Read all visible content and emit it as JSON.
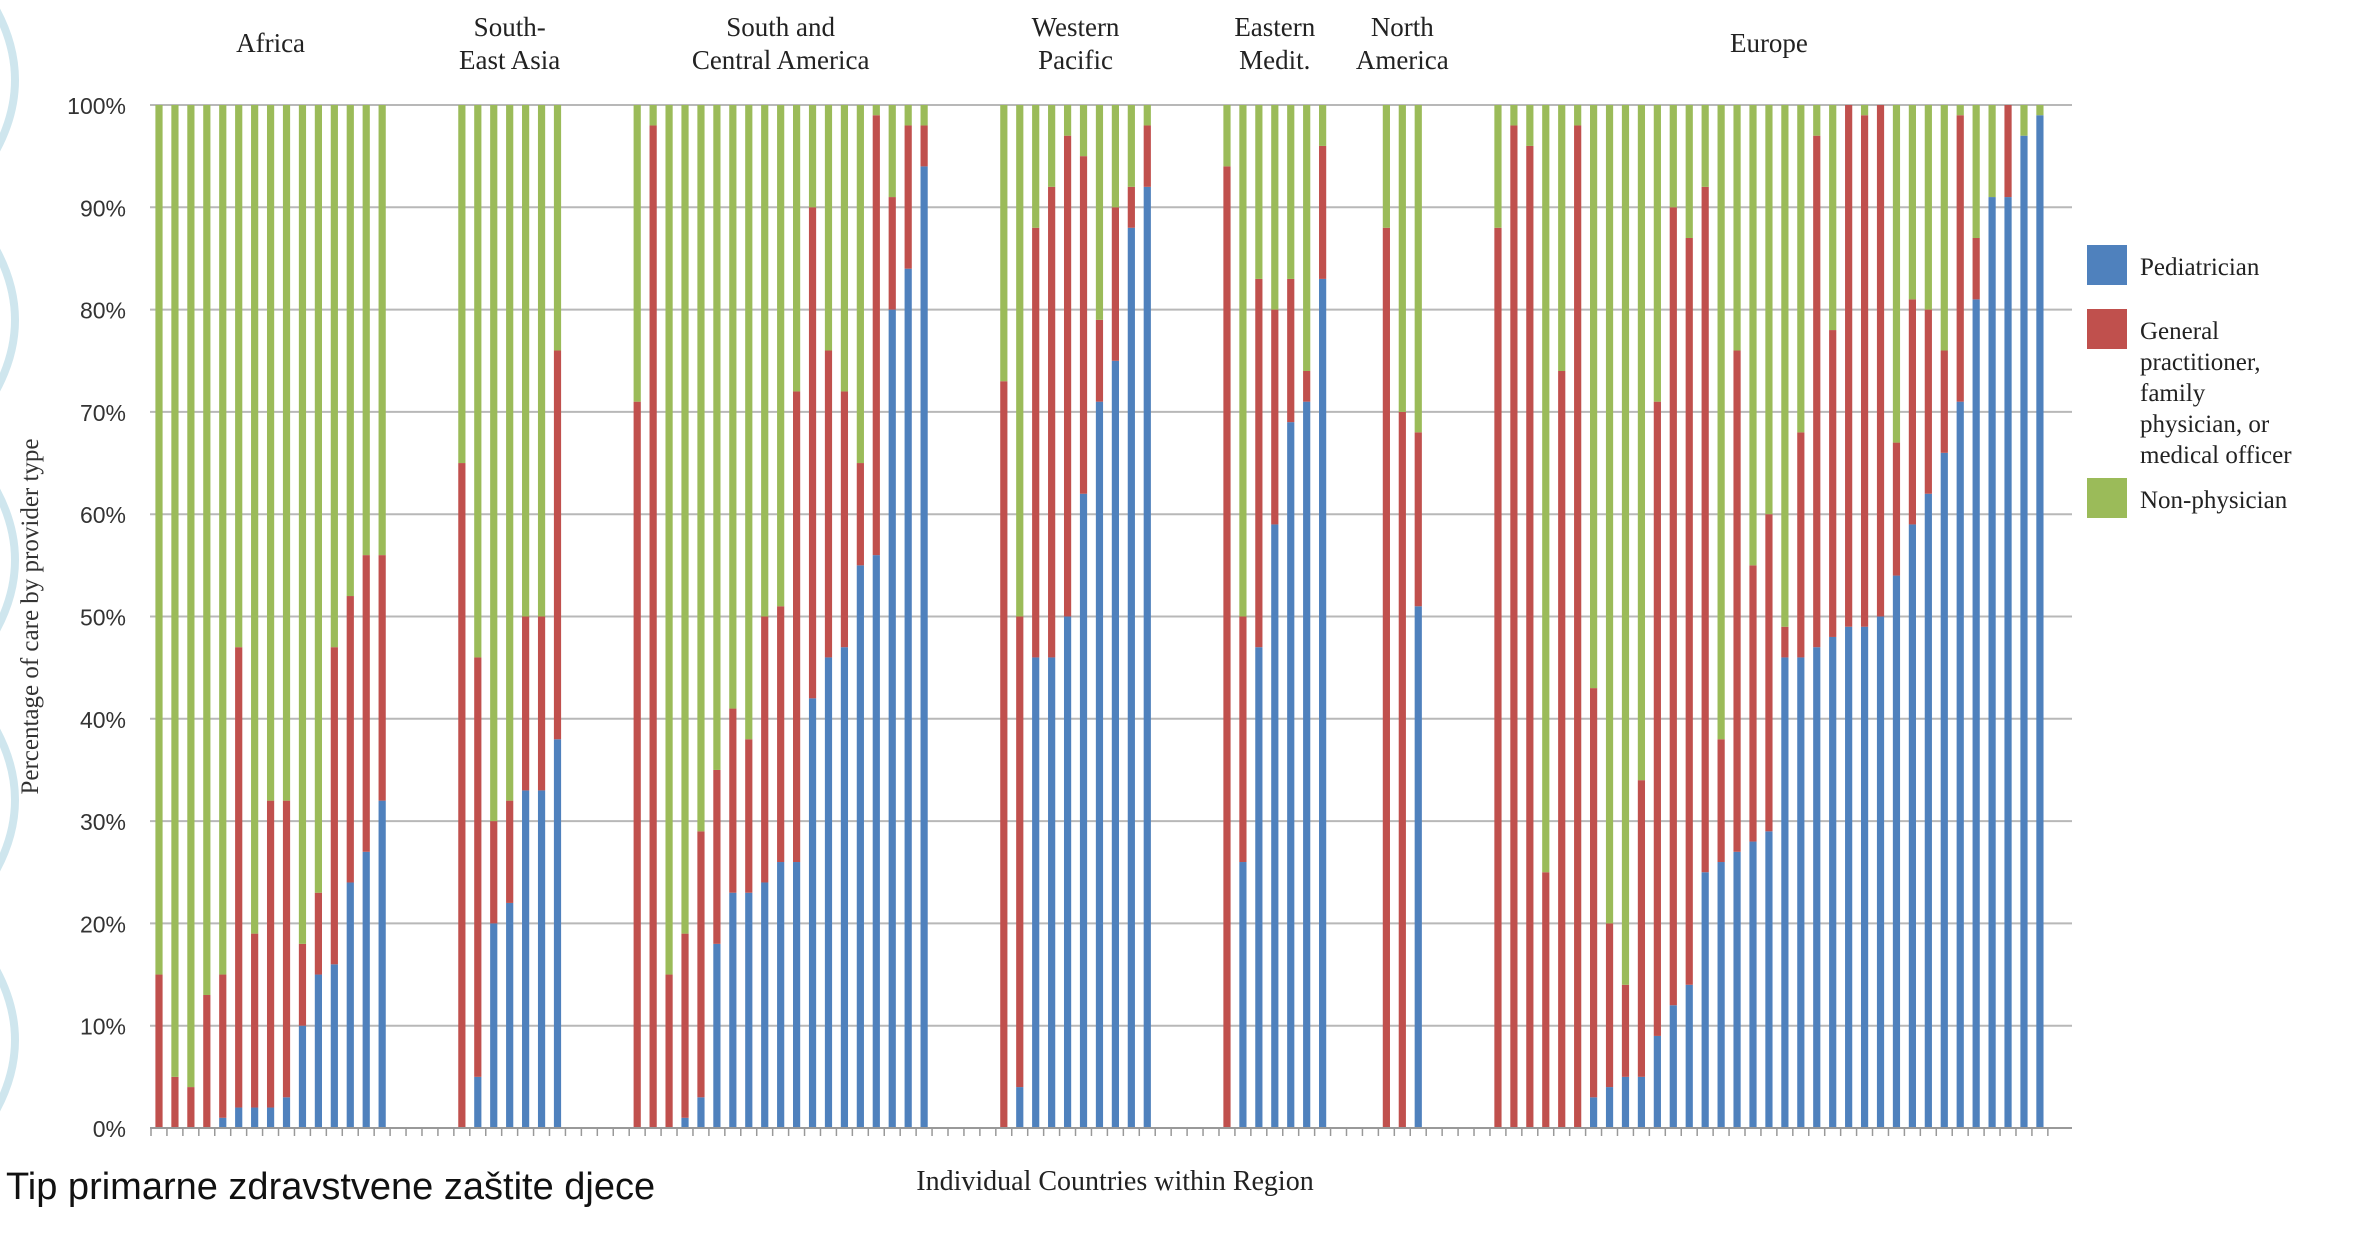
{
  "slide": {
    "caption": "Tip primarne zdravstvene zaštite djece"
  },
  "chart_data": {
    "type": "bar",
    "stacked": true,
    "normalized_to": 100,
    "xlabel": "Individual Countries within Region",
    "ylabel": "Percentage of care by provider type",
    "ylim": [
      0,
      100
    ],
    "y_ticks": [
      "0%",
      "10%",
      "20%",
      "30%",
      "40%",
      "50%",
      "60%",
      "70%",
      "80%",
      "90%",
      "100%"
    ],
    "grid": true,
    "legend_position": "right",
    "colors": {
      "Pediatrician": "#4f81bd",
      "General practitioner, family physician, or medical officer": "#c0504d",
      "Non-physician": "#9bbb59"
    },
    "legend": [
      {
        "series": "Pediatrician",
        "lines": [
          "Pediatrician"
        ]
      },
      {
        "series": "General practitioner, family physician, or medical officer",
        "lines": [
          "General",
          "practitioner,",
          "family",
          "physician, or",
          "medical officer"
        ]
      },
      {
        "series": "Non-physician",
        "lines": [
          "Non-physician"
        ]
      }
    ],
    "regions": [
      {
        "label_lines": [
          "Africa"
        ],
        "pediatrician": [
          0,
          0,
          0,
          0,
          1,
          2,
          2,
          2,
          3,
          10,
          15,
          16,
          24,
          27,
          32
        ],
        "gp_cumulative": [
          15,
          5,
          4,
          13,
          15,
          47,
          19,
          32,
          32,
          18,
          23,
          47,
          52,
          56,
          56
        ]
      },
      {
        "label_lines": [
          "South-",
          "East Asia"
        ],
        "pediatrician": [
          0,
          5,
          20,
          22,
          33,
          33,
          38
        ],
        "gp_cumulative": [
          65,
          46,
          30,
          32,
          50,
          50,
          76
        ]
      },
      {
        "label_lines": [
          "South and",
          "Central America"
        ],
        "pediatrician": [
          0,
          0,
          0,
          1,
          3,
          18,
          23,
          23,
          24,
          26,
          26,
          42,
          46,
          47,
          55,
          56,
          80,
          84,
          94
        ],
        "gp_cumulative": [
          71,
          98,
          15,
          19,
          29,
          35,
          41,
          38,
          50,
          51,
          72,
          90,
          76,
          72,
          65,
          99,
          91,
          98,
          98
        ]
      },
      {
        "label_lines": [
          "Western",
          "Pacific"
        ],
        "pediatrician": [
          0,
          4,
          46,
          46,
          50,
          62,
          71,
          75,
          88,
          92
        ],
        "gp_cumulative": [
          73,
          50,
          88,
          92,
          97,
          95,
          79,
          90,
          92,
          98
        ]
      },
      {
        "label_lines": [
          "Eastern",
          "Medit."
        ],
        "pediatrician": [
          0,
          26,
          47,
          59,
          69,
          71,
          83
        ],
        "gp_cumulative": [
          94,
          50,
          83,
          80,
          83,
          74,
          96
        ]
      },
      {
        "label_lines": [
          "North",
          "America"
        ],
        "pediatrician": [
          0,
          0,
          51
        ],
        "gp_cumulative": [
          88,
          70,
          68
        ]
      },
      {
        "label_lines": [
          "Europe"
        ],
        "pediatrician": [
          0,
          0,
          0,
          0,
          0,
          0,
          3,
          4,
          5,
          5,
          9,
          12,
          14,
          25,
          26,
          27,
          28,
          29,
          46,
          46,
          47,
          48,
          49,
          49,
          50,
          54,
          59,
          62,
          66,
          71,
          81,
          91,
          91,
          97,
          99
        ],
        "gp_cumulative": [
          88,
          98,
          96,
          25,
          74,
          98,
          43,
          20,
          14,
          34,
          71,
          90,
          87,
          92,
          38,
          76,
          55,
          60,
          49,
          68,
          97,
          78,
          100,
          99,
          100,
          67,
          81,
          80,
          76,
          99,
          87,
          91,
          100,
          97,
          99
        ]
      }
    ]
  }
}
